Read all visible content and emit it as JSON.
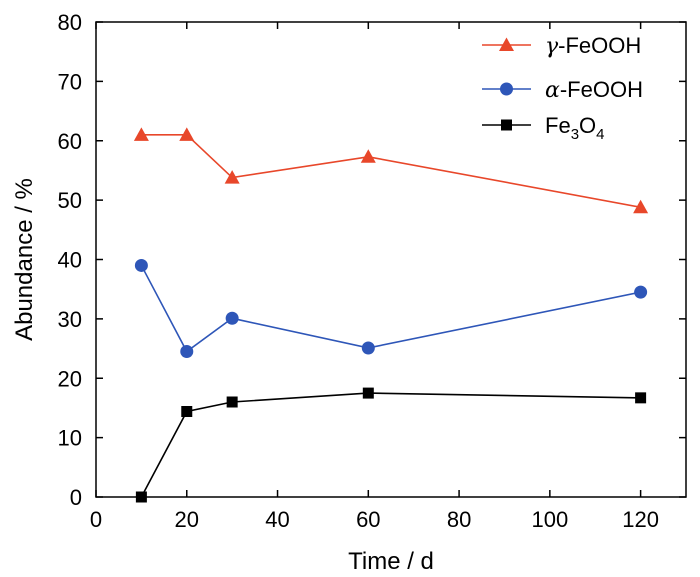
{
  "chart_data": {
    "type": "line",
    "title": "",
    "xlabel": "Time / d",
    "ylabel": "Abundance / %",
    "xlim": [
      0,
      130
    ],
    "ylim": [
      0,
      80
    ],
    "x_ticks": [
      0,
      20,
      40,
      60,
      80,
      100,
      120
    ],
    "y_ticks": [
      0,
      10,
      20,
      30,
      40,
      50,
      60,
      70,
      80
    ],
    "grid": false,
    "legend_position": "top-right",
    "series": [
      {
        "name": "γ-FeOOH",
        "legend": {
          "greek": "γ",
          "rest": "-FeOOH"
        },
        "color": "#e8472a",
        "marker": "triangle",
        "x": [
          10,
          20,
          30,
          60,
          120
        ],
        "values": [
          61,
          61,
          53.8,
          57.3,
          48.8
        ]
      },
      {
        "name": "α-FeOOH",
        "legend": {
          "greek": "α",
          "rest": "-FeOOH"
        },
        "color": "#2e56b8",
        "marker": "circle",
        "x": [
          10,
          20,
          30,
          60,
          120
        ],
        "values": [
          39,
          24.5,
          30.1,
          25.1,
          34.5
        ]
      },
      {
        "name": "Fe3O4",
        "legend": {
          "parts": [
            [
              "Fe",
              false
            ],
            [
              "3",
              true
            ],
            [
              "O",
              false
            ],
            [
              "4",
              true
            ]
          ]
        },
        "color": "#000000",
        "marker": "square",
        "x": [
          10,
          20,
          30,
          60,
          120
        ],
        "values": [
          0,
          14.4,
          16,
          17.5,
          16.7
        ]
      }
    ]
  }
}
